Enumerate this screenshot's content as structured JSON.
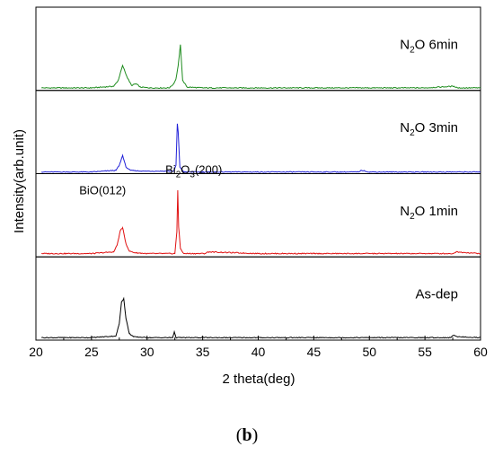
{
  "figure_label": "b",
  "chart_data": {
    "type": "line",
    "xlabel": "2 theta(deg)",
    "ylabel": "Intensity(arb.unit)",
    "xlim": [
      20,
      60
    ],
    "xticks": [
      20,
      25,
      30,
      35,
      40,
      45,
      50,
      55,
      60
    ],
    "layout": "stacked panels, top to bottom",
    "grid": false,
    "series": [
      {
        "name_parts": [
          [
            "N",
            ""
          ],
          [
            "2",
            "sub"
          ],
          [
            "O 6min",
            ""
          ]
        ],
        "color": "#1e8c1e",
        "baseline": 0.03,
        "noise": 0.006,
        "x": [
          20.5,
          25,
          27,
          27.4,
          27.8,
          28.2,
          28.6,
          29.0,
          29.4,
          30.2,
          32.0,
          32.4,
          32.6,
          32.8,
          33.0,
          33.2,
          33.6,
          35,
          40,
          45,
          50,
          55,
          57.6,
          58,
          60
        ],
        "y": [
          0.03,
          0.03,
          0.05,
          0.12,
          0.3,
          0.16,
          0.06,
          0.08,
          0.04,
          0.03,
          0.03,
          0.08,
          0.14,
          0.3,
          0.55,
          0.12,
          0.04,
          0.03,
          0.03,
          0.03,
          0.03,
          0.03,
          0.05,
          0.03,
          0.03
        ]
      },
      {
        "name_parts": [
          [
            "N",
            ""
          ],
          [
            "2",
            "sub"
          ],
          [
            "O 3min",
            ""
          ]
        ],
        "color": "#1f1fd8",
        "baseline": 0.02,
        "noise": 0.005,
        "x": [
          20.5,
          25,
          27.2,
          27.5,
          27.8,
          28.1,
          28.5,
          29.5,
          32.4,
          32.6,
          32.72,
          32.8,
          32.95,
          33.3,
          35,
          40,
          45,
          49,
          49.3,
          50,
          55,
          60
        ],
        "y": [
          0.02,
          0.02,
          0.04,
          0.1,
          0.22,
          0.08,
          0.04,
          0.03,
          0.03,
          0.1,
          0.6,
          0.5,
          0.08,
          0.02,
          0.02,
          0.02,
          0.02,
          0.02,
          0.04,
          0.02,
          0.02,
          0.02
        ]
      },
      {
        "name_parts": [
          [
            "N",
            ""
          ],
          [
            "2",
            "sub"
          ],
          [
            "O 1min",
            ""
          ]
        ],
        "color": "#e01010",
        "baseline": 0.04,
        "noise": 0.006,
        "x": [
          20.5,
          25,
          27.0,
          27.3,
          27.6,
          27.8,
          28.1,
          28.4,
          28.9,
          30,
          32.5,
          32.68,
          32.76,
          32.84,
          33.0,
          33.3,
          35.2,
          35.5,
          40,
          45,
          50,
          55,
          57.5,
          57.8,
          60
        ],
        "y": [
          0.04,
          0.04,
          0.06,
          0.14,
          0.32,
          0.35,
          0.16,
          0.07,
          0.05,
          0.04,
          0.04,
          0.3,
          0.8,
          0.36,
          0.1,
          0.04,
          0.04,
          0.06,
          0.04,
          0.04,
          0.04,
          0.04,
          0.04,
          0.06,
          0.04
        ]
      },
      {
        "name_parts": [
          [
            "As-dep",
            ""
          ]
        ],
        "color": "#000000",
        "baseline": 0.03,
        "noise": 0.005,
        "x": [
          20.5,
          25,
          27.2,
          27.5,
          27.7,
          27.9,
          28.1,
          28.4,
          28.8,
          30,
          32.3,
          32.45,
          32.6,
          33,
          35,
          40,
          45,
          50,
          55,
          57.3,
          57.6,
          58,
          60
        ],
        "y": [
          0.03,
          0.03,
          0.05,
          0.2,
          0.46,
          0.5,
          0.26,
          0.08,
          0.04,
          0.03,
          0.03,
          0.1,
          0.03,
          0.03,
          0.03,
          0.03,
          0.03,
          0.03,
          0.03,
          0.03,
          0.06,
          0.04,
          0.03
        ]
      }
    ],
    "annotations": [
      {
        "panel": 2,
        "x": 26.0,
        "y": 0.75,
        "parts": [
          [
            "BiO(012)",
            ""
          ]
        ]
      },
      {
        "panel": 2,
        "x": 34.2,
        "y": 1.0,
        "parts": [
          [
            "Bi",
            ""
          ],
          [
            "2",
            "sub"
          ],
          [
            "O",
            ""
          ],
          [
            "3",
            "sub"
          ],
          [
            "(200)",
            ""
          ]
        ]
      }
    ]
  }
}
